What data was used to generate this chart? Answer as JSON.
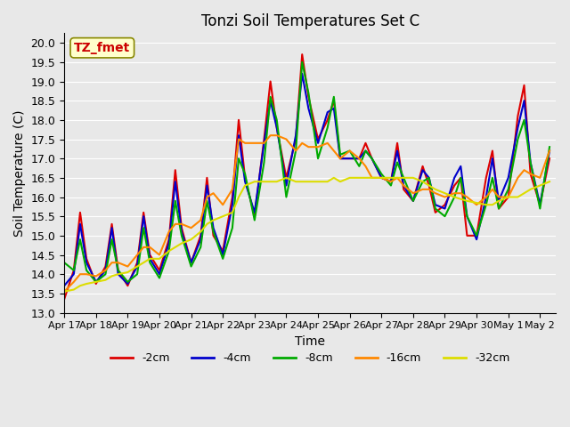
{
  "title": "Tonzi Soil Temperatures Set C",
  "xlabel": "Time",
  "ylabel": "Soil Temperature (C)",
  "ylim": [
    13.0,
    20.25
  ],
  "xlim": [
    0,
    15.5
  ],
  "xtick_labels": [
    "Apr 17",
    "Apr 18",
    "Apr 19",
    "Apr 20",
    "Apr 21",
    "Apr 22",
    "Apr 23",
    "Apr 24",
    "Apr 25",
    "Apr 26",
    "Apr 27",
    "Apr 28",
    "Apr 29",
    "Apr 30",
    "May 1",
    "May 2"
  ],
  "xtick_positions": [
    0,
    1,
    2,
    3,
    4,
    5,
    6,
    7,
    8,
    9,
    10,
    11,
    12,
    13,
    14,
    15
  ],
  "ytick_labels": [
    "13.0",
    "13.5",
    "14.0",
    "14.5",
    "15.0",
    "15.5",
    "16.0",
    "16.5",
    "17.0",
    "17.5",
    "18.0",
    "18.5",
    "19.0",
    "19.5",
    "20.0"
  ],
  "ytick_values": [
    13.0,
    13.5,
    14.0,
    14.5,
    15.0,
    15.5,
    16.0,
    16.5,
    17.0,
    17.5,
    18.0,
    18.5,
    19.0,
    19.5,
    20.0
  ],
  "annotation_text": "TZ_fmet",
  "annotation_bg": "#ffffcc",
  "annotation_fg": "#cc0000",
  "bg_color": "#e8e8e8",
  "plot_bg": "#e8e8e8",
  "series": {
    "-2cm": {
      "color": "#dd0000",
      "lw": 1.5,
      "x": [
        0.0,
        0.3,
        0.5,
        0.7,
        1.0,
        1.3,
        1.5,
        1.7,
        2.0,
        2.3,
        2.5,
        2.7,
        3.0,
        3.3,
        3.5,
        3.7,
        4.0,
        4.3,
        4.5,
        4.7,
        5.0,
        5.3,
        5.5,
        5.7,
        6.0,
        6.3,
        6.5,
        6.7,
        7.0,
        7.3,
        7.5,
        7.7,
        8.0,
        8.3,
        8.5,
        8.7,
        9.0,
        9.3,
        9.5,
        9.7,
        10.0,
        10.3,
        10.5,
        10.7,
        11.0,
        11.3,
        11.5,
        11.7,
        12.0,
        12.3,
        12.5,
        12.7,
        13.0,
        13.3,
        13.5,
        13.7,
        14.0,
        14.3,
        14.5,
        14.7,
        15.0,
        15.3
      ],
      "y": [
        13.35,
        14.1,
        15.6,
        14.4,
        13.75,
        14.2,
        15.3,
        14.1,
        13.7,
        14.3,
        15.6,
        14.5,
        14.1,
        14.9,
        16.7,
        15.2,
        14.3,
        15.0,
        16.5,
        15.0,
        14.6,
        16.0,
        18.0,
        16.5,
        15.5,
        17.5,
        19.0,
        17.8,
        16.5,
        17.5,
        19.7,
        18.6,
        17.5,
        18.0,
        18.5,
        17.0,
        17.0,
        17.0,
        17.4,
        17.0,
        16.5,
        16.4,
        17.4,
        16.2,
        15.9,
        16.8,
        16.3,
        15.6,
        15.8,
        16.3,
        16.5,
        15.0,
        15.0,
        16.5,
        17.2,
        15.7,
        16.0,
        18.1,
        18.9,
        16.6,
        15.8,
        17.0
      ]
    },
    "-4cm": {
      "color": "#0000cc",
      "lw": 1.5,
      "x": [
        0.0,
        0.3,
        0.5,
        0.7,
        1.0,
        1.3,
        1.5,
        1.7,
        2.0,
        2.3,
        2.5,
        2.7,
        3.0,
        3.3,
        3.5,
        3.7,
        4.0,
        4.3,
        4.5,
        4.7,
        5.0,
        5.3,
        5.5,
        5.7,
        6.0,
        6.3,
        6.5,
        6.7,
        7.0,
        7.3,
        7.5,
        7.7,
        8.0,
        8.3,
        8.5,
        8.7,
        9.0,
        9.3,
        9.5,
        9.7,
        10.0,
        10.3,
        10.5,
        10.7,
        11.0,
        11.3,
        11.5,
        11.7,
        12.0,
        12.3,
        12.5,
        12.7,
        13.0,
        13.3,
        13.5,
        13.7,
        14.0,
        14.3,
        14.5,
        14.7,
        15.0,
        15.3
      ],
      "y": [
        13.7,
        14.0,
        15.3,
        14.3,
        13.8,
        14.1,
        15.2,
        14.0,
        13.75,
        14.2,
        15.5,
        14.4,
        14.0,
        14.8,
        16.4,
        15.1,
        14.3,
        14.9,
        16.3,
        15.2,
        14.5,
        15.8,
        17.6,
        16.4,
        15.6,
        17.4,
        18.5,
        17.8,
        16.3,
        17.6,
        19.2,
        18.3,
        17.4,
        18.2,
        18.3,
        17.0,
        17.0,
        17.0,
        17.2,
        17.0,
        16.5,
        16.4,
        17.2,
        16.3,
        15.9,
        16.7,
        16.5,
        15.8,
        15.7,
        16.5,
        16.8,
        15.5,
        14.9,
        16.0,
        17.0,
        15.9,
        16.5,
        17.8,
        18.5,
        16.9,
        15.8,
        17.2
      ]
    },
    "-8cm": {
      "color": "#00aa00",
      "lw": 1.5,
      "x": [
        0.0,
        0.3,
        0.5,
        0.7,
        1.0,
        1.3,
        1.5,
        1.7,
        2.0,
        2.3,
        2.5,
        2.7,
        3.0,
        3.3,
        3.5,
        3.7,
        4.0,
        4.3,
        4.5,
        4.7,
        5.0,
        5.3,
        5.5,
        5.7,
        6.0,
        6.3,
        6.5,
        6.7,
        7.0,
        7.3,
        7.5,
        7.7,
        8.0,
        8.3,
        8.5,
        8.7,
        9.0,
        9.3,
        9.5,
        9.7,
        10.0,
        10.3,
        10.5,
        10.7,
        11.0,
        11.3,
        11.5,
        11.7,
        12.0,
        12.3,
        12.5,
        12.7,
        13.0,
        13.3,
        13.5,
        13.7,
        14.0,
        14.3,
        14.5,
        14.7,
        15.0,
        15.3
      ],
      "y": [
        14.3,
        14.1,
        14.9,
        14.1,
        13.8,
        14.0,
        14.9,
        14.1,
        13.8,
        14.0,
        15.2,
        14.3,
        13.9,
        14.6,
        15.9,
        15.0,
        14.2,
        14.7,
        15.9,
        15.1,
        14.4,
        15.2,
        17.0,
        16.6,
        15.4,
        16.9,
        18.6,
        18.0,
        16.0,
        17.2,
        19.5,
        18.7,
        17.0,
        17.8,
        18.6,
        17.1,
        17.2,
        16.8,
        17.2,
        17.0,
        16.6,
        16.3,
        16.9,
        16.5,
        15.9,
        16.4,
        16.5,
        15.7,
        15.5,
        16.0,
        16.5,
        15.5,
        15.0,
        15.8,
        16.5,
        15.7,
        16.2,
        17.5,
        18.0,
        16.9,
        15.7,
        17.3
      ]
    },
    "-16cm": {
      "color": "#ff8800",
      "lw": 1.5,
      "x": [
        0.0,
        0.3,
        0.5,
        0.7,
        1.0,
        1.3,
        1.5,
        1.7,
        2.0,
        2.3,
        2.5,
        2.7,
        3.0,
        3.3,
        3.5,
        3.7,
        4.0,
        4.3,
        4.5,
        4.7,
        5.0,
        5.3,
        5.5,
        5.7,
        6.0,
        6.3,
        6.5,
        6.7,
        7.0,
        7.3,
        7.5,
        7.7,
        8.0,
        8.3,
        8.5,
        8.7,
        9.0,
        9.3,
        9.5,
        9.7,
        10.0,
        10.3,
        10.5,
        10.7,
        11.0,
        11.3,
        11.5,
        11.7,
        12.0,
        12.3,
        12.5,
        12.7,
        13.0,
        13.3,
        13.5,
        13.7,
        14.0,
        14.3,
        14.5,
        14.7,
        15.0,
        15.3
      ],
      "y": [
        13.55,
        13.8,
        14.0,
        14.0,
        13.95,
        14.1,
        14.3,
        14.3,
        14.2,
        14.5,
        14.7,
        14.7,
        14.5,
        15.1,
        15.3,
        15.3,
        15.2,
        15.4,
        16.0,
        16.1,
        15.8,
        16.2,
        17.5,
        17.4,
        17.4,
        17.4,
        17.6,
        17.6,
        17.5,
        17.2,
        17.4,
        17.3,
        17.3,
        17.4,
        17.2,
        17.0,
        17.2,
        17.0,
        16.8,
        16.5,
        16.5,
        16.4,
        16.5,
        16.3,
        16.1,
        16.2,
        16.2,
        16.1,
        16.0,
        16.1,
        16.1,
        16.0,
        15.8,
        16.0,
        16.2,
        16.0,
        16.0,
        16.5,
        16.7,
        16.6,
        16.5,
        17.2
      ]
    },
    "-32cm": {
      "color": "#dddd00",
      "lw": 1.5,
      "x": [
        0.0,
        0.3,
        0.5,
        0.7,
        1.0,
        1.3,
        1.5,
        1.7,
        2.0,
        2.3,
        2.5,
        2.7,
        3.0,
        3.3,
        3.5,
        3.7,
        4.0,
        4.3,
        4.5,
        4.7,
        5.0,
        5.3,
        5.5,
        5.7,
        6.0,
        6.3,
        6.5,
        6.7,
        7.0,
        7.3,
        7.5,
        7.7,
        8.0,
        8.3,
        8.5,
        8.7,
        9.0,
        9.3,
        9.5,
        9.7,
        10.0,
        10.3,
        10.5,
        10.7,
        11.0,
        11.3,
        11.5,
        11.7,
        12.0,
        12.3,
        12.5,
        12.7,
        13.0,
        13.3,
        13.5,
        13.7,
        14.0,
        14.3,
        14.5,
        14.7,
        15.0,
        15.3
      ],
      "y": [
        13.55,
        13.6,
        13.7,
        13.75,
        13.8,
        13.85,
        13.95,
        14.0,
        14.05,
        14.2,
        14.3,
        14.4,
        14.4,
        14.6,
        14.7,
        14.8,
        14.9,
        15.1,
        15.3,
        15.4,
        15.5,
        15.6,
        16.0,
        16.3,
        16.4,
        16.4,
        16.4,
        16.4,
        16.5,
        16.4,
        16.4,
        16.4,
        16.4,
        16.4,
        16.5,
        16.4,
        16.5,
        16.5,
        16.5,
        16.5,
        16.5,
        16.5,
        16.5,
        16.5,
        16.5,
        16.4,
        16.3,
        16.2,
        16.1,
        16.0,
        15.95,
        15.9,
        15.85,
        15.8,
        15.8,
        15.9,
        16.0,
        16.0,
        16.1,
        16.2,
        16.3,
        16.4
      ]
    }
  }
}
